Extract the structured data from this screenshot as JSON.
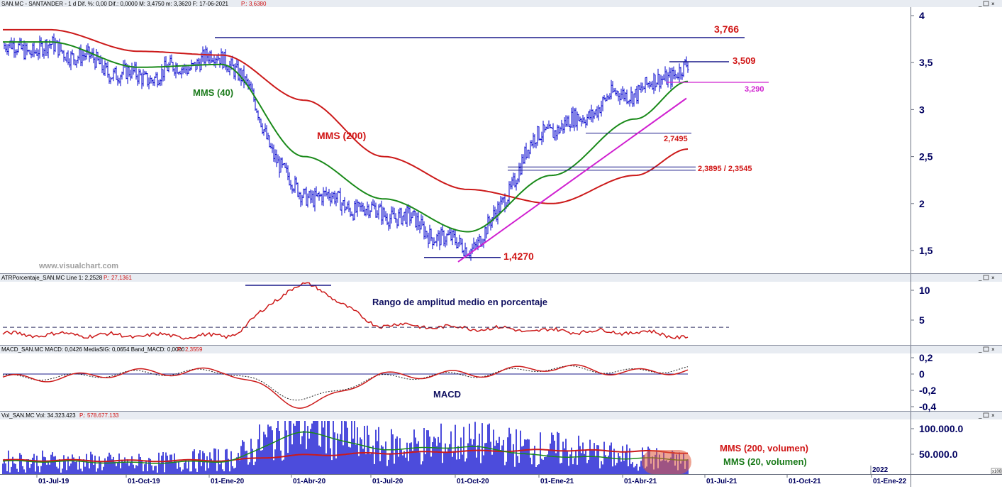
{
  "colors": {
    "price_bars": "#0000cc",
    "mms200": "#cc1a1a",
    "mms40": "#1a8a1a",
    "trendline": "#d020d0",
    "level_lines": "#1a1a8a",
    "grid_border": "#9aa0b0",
    "axis_text": "#000060",
    "highlight": "#e05a3a"
  },
  "watermark": "www.visualchart.com",
  "panels": {
    "price": {
      "header_left": "SAN.MC - SANTANDER - 1 d  Dif. %: 0,00  Dif.: 0,0000  M: 3,4750  m: 3,3620  F: 17-06-2021",
      "header_right": "P.: 3,6380",
      "yticks": [
        "4",
        "3,5",
        "3",
        "2,5",
        "2",
        "1,5"
      ]
    },
    "atr": {
      "header_left": "ATRPorcentaje_SAN.MC  Line 1: 2,2528",
      "header_right": "P.: 27,1361",
      "yticks": [
        "10",
        "5"
      ],
      "title": "Rango de amplitud medio en porcentaje"
    },
    "macd": {
      "header_left": "MACD_SAN.MC  MACD: 0,0426  MediaSIG: 0,0654  Band_MACD: 0,0000",
      "header_right": "P.: 2,3559",
      "yticks": [
        "0,2",
        "0",
        "-0,2",
        "-0,4"
      ],
      "title": "MACD"
    },
    "volume": {
      "header_left": "Vol_SAN.MC  Vol: 34.323.423",
      "header_right": "P.: 578.677.133",
      "yticks": [
        "100.000.0",
        "50.000.0"
      ]
    }
  },
  "x_axis": {
    "labels": [
      "01-Jul-19",
      "01-Oct-19",
      "01-Ene-20",
      "01-Abr-20",
      "01-Jul-20",
      "01-Oct-20",
      "01-Ene-21",
      "01-Abr-21",
      "01-Jul-21",
      "01-Oct-21",
      "01-Ene-22"
    ],
    "year_marker": "2022",
    "corner_tag": "x100"
  },
  "annotations": {
    "level_3766": "3,766",
    "level_3509": "3,509",
    "level_3290": "3,290",
    "level_27495": "2,7495",
    "level_23895": "2,3895 / 2,3545",
    "level_14270": "1,4270",
    "mms40": "MMS (40)",
    "mms200": "MMS (200)",
    "vol_mms200": "MMS (200, volumen)",
    "vol_mms20": "MMS (20, volumen)"
  },
  "chart_data": [
    {
      "type": "line",
      "title": "SAN.MC - SANTANDER - 1 d",
      "x": [
        "01-Jul-19",
        "01-Oct-19",
        "01-Ene-20",
        "01-Abr-20",
        "01-Jul-20",
        "01-Oct-20",
        "01-Ene-21",
        "01-Abr-21",
        "17-Jun-21"
      ],
      "ylim": [
        1.3,
        4.05
      ],
      "series": [
        {
          "name": "SAN.MC",
          "values": [
            3.65,
            3.35,
            3.55,
            2.1,
            1.9,
            1.55,
            2.8,
            3.2,
            3.45
          ]
        },
        {
          "name": "MMS (200)",
          "values": [
            3.85,
            3.62,
            3.58,
            3.1,
            2.5,
            2.15,
            2.0,
            2.3,
            2.58
          ]
        },
        {
          "name": "MMS (40)",
          "values": [
            3.72,
            3.45,
            3.48,
            2.5,
            2.05,
            1.7,
            2.3,
            2.9,
            3.3
          ]
        }
      ],
      "levels": [
        3.766,
        3.509,
        3.29,
        2.7495,
        2.3895,
        2.3545,
        1.427
      ]
    },
    {
      "type": "line",
      "title": "Rango de amplitud medio en porcentaje",
      "x": [
        "01-Jul-19",
        "01-Oct-19",
        "01-Ene-20",
        "01-Abr-20",
        "01-Jul-20",
        "01-Oct-20",
        "01-Ene-21",
        "01-Abr-21",
        "17-Jun-21"
      ],
      "ylim": [
        0,
        11
      ],
      "series": [
        {
          "name": "ATRPorcentaje",
          "values": [
            2.6,
            2.4,
            2.3,
            10.8,
            4.2,
            3.7,
            3.2,
            3.0,
            2.25
          ]
        }
      ],
      "reference_level": 3.8
    },
    {
      "type": "line",
      "title": "MACD",
      "x": [
        "01-Jul-19",
        "01-Oct-19",
        "01-Ene-20",
        "01-Abr-20",
        "01-Jul-20",
        "01-Oct-20",
        "01-Ene-21",
        "01-Abr-21",
        "17-Jun-21"
      ],
      "ylim": [
        -0.45,
        0.25
      ],
      "series": [
        {
          "name": "MACD",
          "values": [
            -0.05,
            0.02,
            0.03,
            -0.38,
            -0.02,
            0.0,
            0.08,
            0.02,
            0.0426
          ]
        },
        {
          "name": "MediaSIG",
          "values": [
            -0.04,
            0.01,
            0.03,
            -0.3,
            -0.04,
            -0.01,
            0.07,
            0.03,
            0.0654
          ]
        }
      ]
    },
    {
      "type": "bar",
      "title": "Vol_SAN.MC",
      "x": [
        "01-Jul-19",
        "01-Oct-19",
        "01-Ene-20",
        "01-Abr-20",
        "01-Jul-20",
        "01-Oct-20",
        "01-Ene-21",
        "01-Abr-21",
        "17-Jun-21"
      ],
      "ylim": [
        0,
        125000
      ],
      "series": [
        {
          "name": "Vol",
          "values": [
            35000,
            32000,
            38000,
            105000,
            62000,
            70000,
            58000,
            42000,
            34323
          ]
        },
        {
          "name": "MMS (200, volumen)",
          "values": [
            38000,
            37000,
            38000,
            48000,
            52000,
            56000,
            58000,
            56000,
            53000
          ]
        },
        {
          "name": "MMS (20, volumen)",
          "values": [
            36000,
            33000,
            36000,
            92000,
            60000,
            64000,
            46000,
            42000,
            40000
          ]
        }
      ]
    }
  ]
}
